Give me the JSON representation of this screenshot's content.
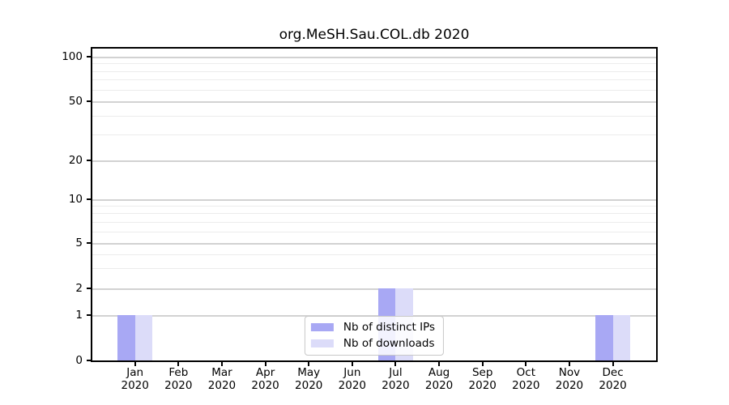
{
  "chart_data": {
    "type": "bar",
    "title": "org.MeSH.Sau.COL.db 2020",
    "categories": [
      "Jan",
      "Feb",
      "Mar",
      "Apr",
      "May",
      "Jun",
      "Jul",
      "Aug",
      "Sep",
      "Oct",
      "Nov",
      "Dec"
    ],
    "category_year": "2020",
    "series": [
      {
        "name": "Nb of distinct IPs",
        "color": "#a8a8f4",
        "values": [
          1,
          0,
          0,
          0,
          0,
          0,
          2,
          0,
          0,
          0,
          0,
          1
        ]
      },
      {
        "name": "Nb of downloads",
        "color": "#dcdcf9",
        "values": [
          1,
          0,
          0,
          0,
          0,
          0,
          2,
          0,
          0,
          0,
          0,
          1
        ]
      }
    ],
    "y_axis": {
      "scale": "log-like",
      "major_ticks": [
        0,
        1,
        2,
        5,
        10,
        20,
        50,
        100
      ],
      "minor_ticks": [
        3,
        4,
        6,
        7,
        8,
        9,
        30,
        40,
        60,
        70,
        80,
        90
      ],
      "range_max": 100
    },
    "legend": {
      "position": "bottom-center",
      "entries": [
        "Nb of distinct IPs",
        "Nb of downloads"
      ]
    },
    "grid": true
  },
  "colors": {
    "background": "#ffffff",
    "axis": "#000000",
    "grid_major": "#d2d2d2",
    "grid_minor": "#ececec",
    "bar_distinct_ips": "#a8a8f4",
    "bar_downloads": "#dcdcf9",
    "legend_border": "#c8c8c8",
    "text": "#000000"
  }
}
